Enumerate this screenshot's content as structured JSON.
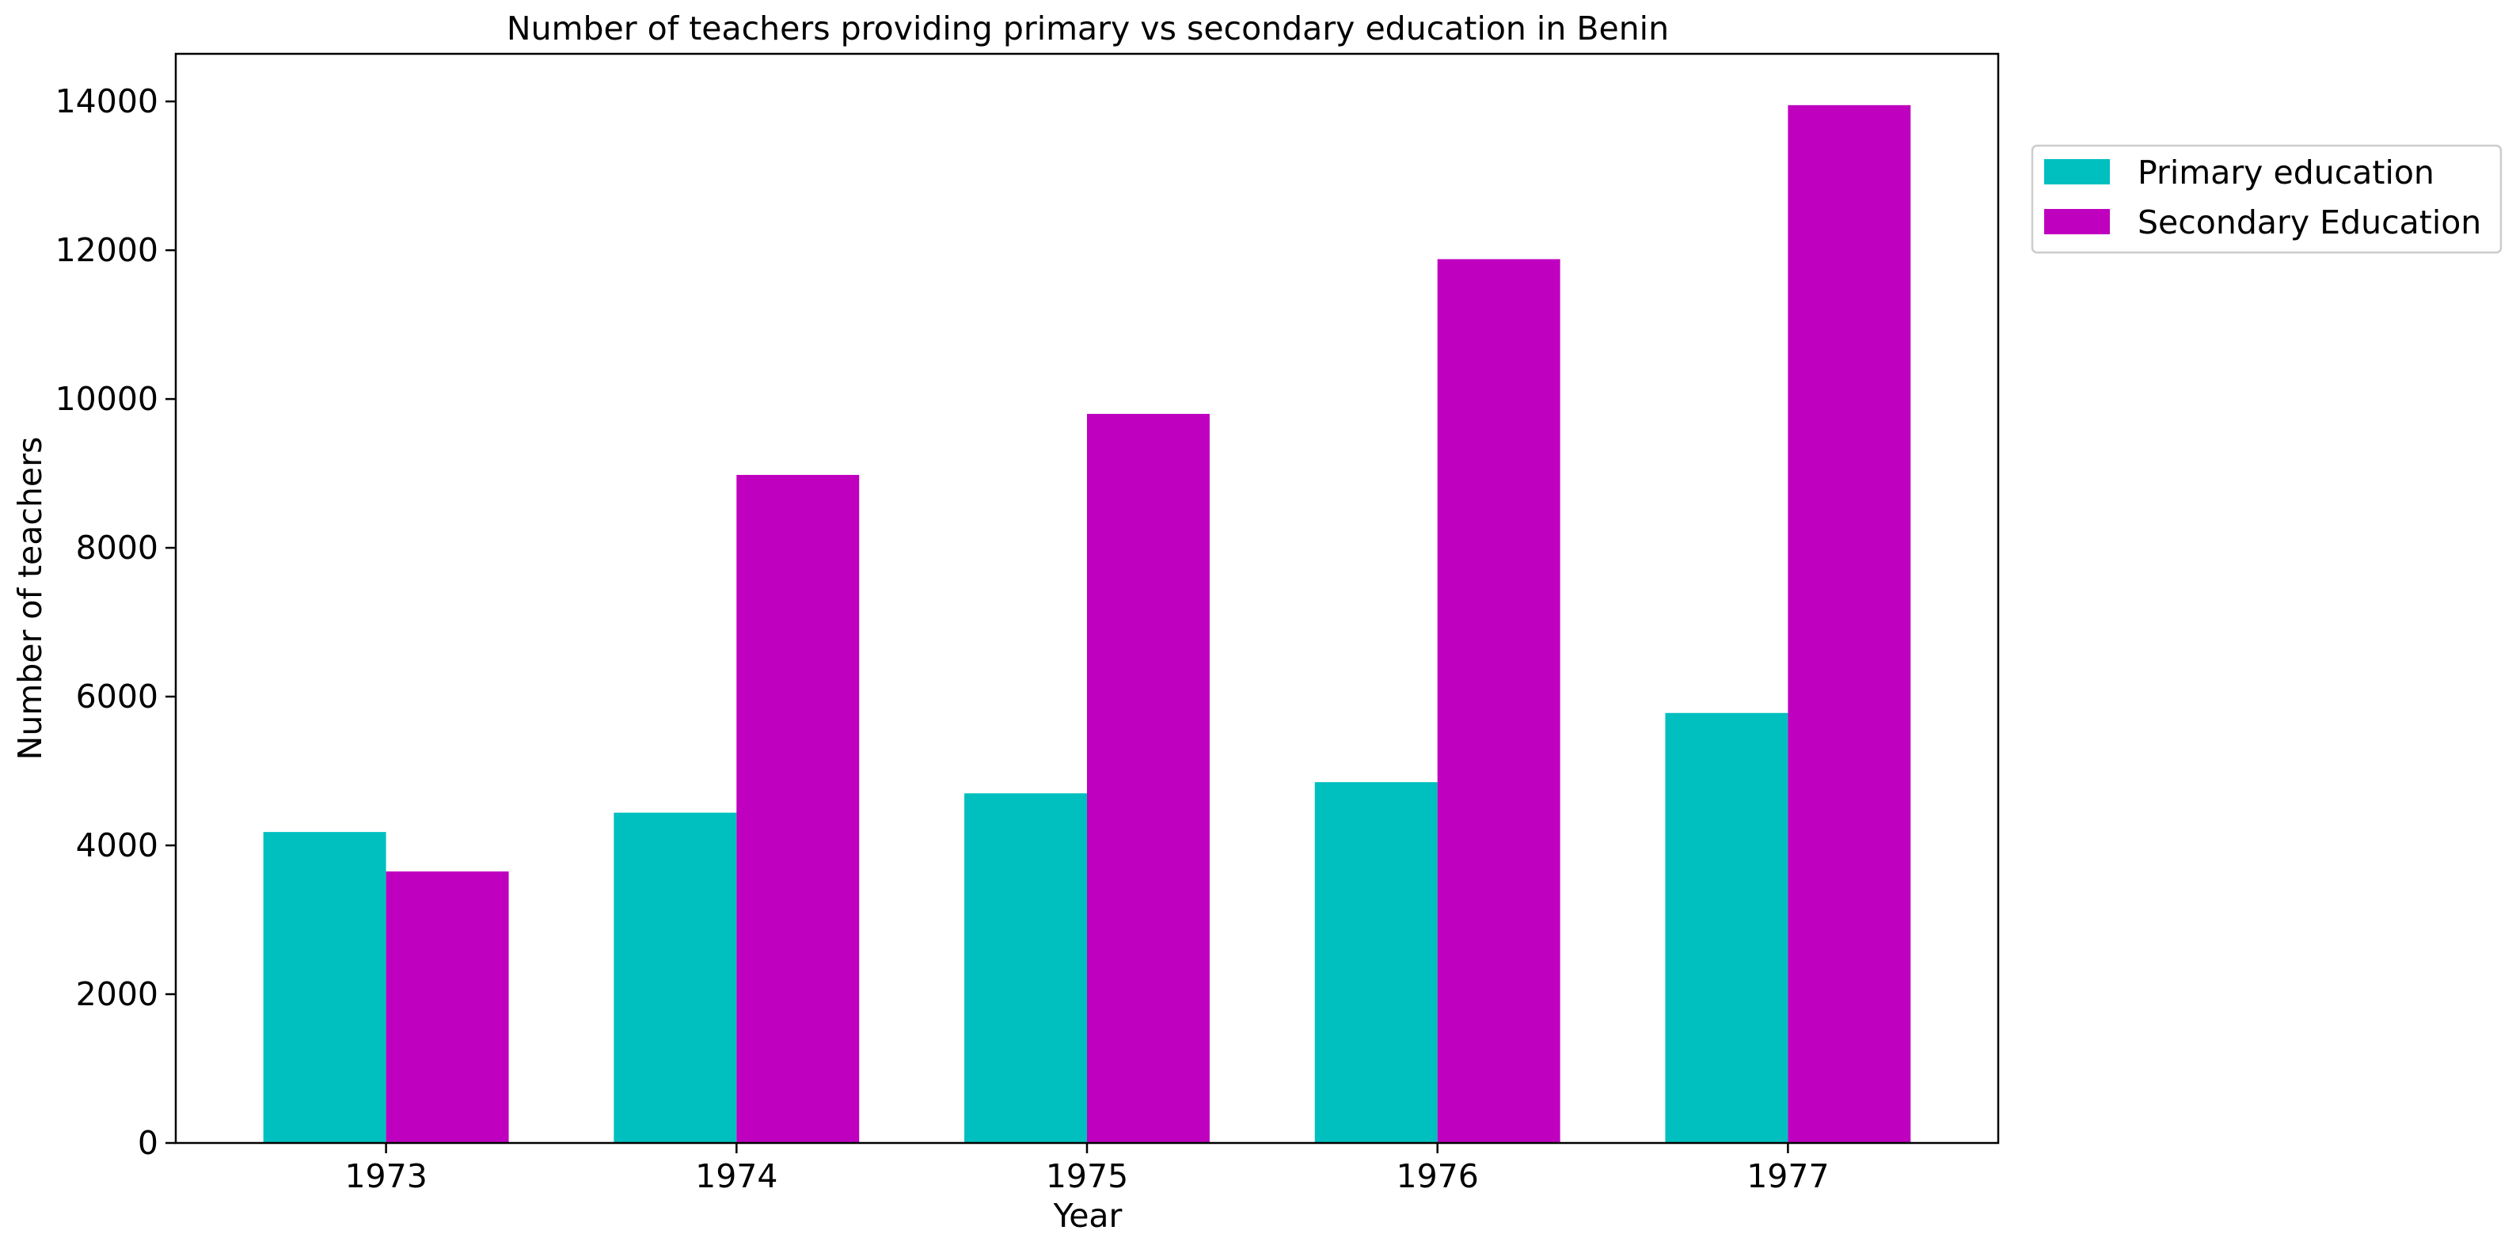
{
  "chart_data": {
    "type": "bar",
    "title": "Number of teachers providing primary vs secondary education in Benin",
    "xlabel": "Year",
    "ylabel": "Number of teachers",
    "categories": [
      "1973",
      "1974",
      "1975",
      "1976",
      "1977"
    ],
    "series": [
      {
        "name": "Primary education",
        "color": "#00bfbf",
        "values": [
          4180,
          4440,
          4700,
          4850,
          5780
        ]
      },
      {
        "name": "Secondary Education",
        "color": "#bf00bf",
        "values": [
          3650,
          8980,
          9800,
          11880,
          13950
        ]
      }
    ],
    "ylim": [
      0,
      14640
    ],
    "yticks": [
      0,
      2000,
      4000,
      6000,
      8000,
      10000,
      12000,
      14000
    ],
    "grid": false,
    "legend_position": "top-right, outside plot"
  }
}
